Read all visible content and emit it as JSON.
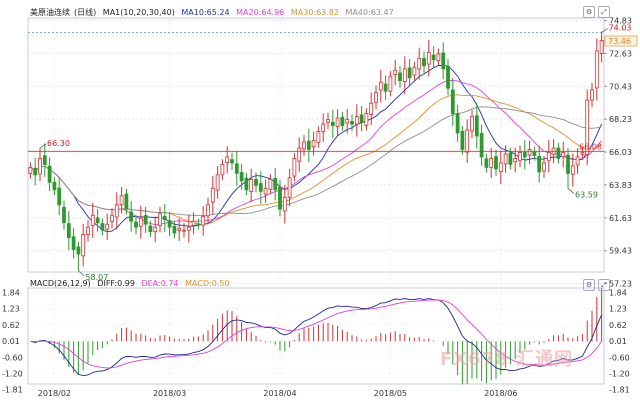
{
  "legend": {
    "title": "美原油连续",
    "period": "(日线)",
    "ma": "MA1(10,20,30,40)",
    "ma10": "MA10:65.24",
    "ma20": "MA20:64.96",
    "ma30": "MA30:63.82",
    "ma40": "MA40:63.47"
  },
  "macd_legend": {
    "title": "MACD(26,12,9)",
    "diff": "DIFF:0.99",
    "dea": "DEA:0.74",
    "macd": "MACD:0.50"
  },
  "watermark": "FX678 汇通网",
  "colors": {
    "up": "#d23030",
    "down": "#2e9a2e",
    "ma10": "#2030b0",
    "ma20": "#e040e0",
    "ma30": "#e09030",
    "ma40": "#909090",
    "hline": "#e03030",
    "price_tag": "#e08020"
  },
  "chart_data": {
    "type": "candlestick",
    "price_axis": {
      "ylim": [
        58.0,
        75.0
      ],
      "ticks": [
        "74.83",
        "72.63",
        "70.43",
        "68.23",
        "66.03",
        "63.83",
        "61.63",
        "59.43",
        "57.23"
      ]
    },
    "macd_axis": {
      "ylim": [
        -1.6,
        2.0
      ],
      "ticks": [
        "1.84",
        "1.23",
        "0.62",
        "0.01",
        "-0.60",
        "-1.20",
        "-1.81"
      ]
    },
    "date_labels": [
      {
        "label": "2018/02",
        "index": 5
      },
      {
        "label": "2018/03",
        "index": 29
      },
      {
        "label": "2018/04",
        "index": 52
      },
      {
        "label": "2018/05",
        "index": 75
      },
      {
        "label": "2018/06",
        "index": 98
      }
    ],
    "horizontal_line": {
      "value": 66.08,
      "label": "66.08"
    },
    "last_price": {
      "value": 73.46,
      "label": "73.46"
    },
    "annotations": [
      {
        "label": "66.30",
        "index": 2,
        "value": 66.3
      },
      {
        "label": "58.07",
        "index": 10,
        "value": 58.07
      },
      {
        "label": "74.03",
        "index": 119,
        "value": 74.03
      },
      {
        "label": "63.59",
        "index": 112,
        "value": 63.59
      }
    ],
    "closes": [
      65.0,
      64.5,
      65.6,
      65.2,
      64.0,
      63.5,
      62.5,
      61.3,
      60.3,
      59.5,
      59.2,
      60.5,
      61.0,
      61.8,
      61.3,
      60.8,
      61.2,
      61.8,
      62.5,
      63.1,
      62.2,
      61.4,
      61.0,
      61.6,
      61.2,
      60.7,
      61.0,
      61.9,
      61.5,
      61.0,
      60.6,
      60.9,
      60.8,
      61.0,
      61.4,
      61.2,
      61.7,
      62.5,
      63.6,
      64.5,
      65.2,
      65.7,
      65.3,
      64.6,
      64.1,
      63.5,
      64.2,
      63.8,
      63.4,
      63.6,
      64.2,
      63.5,
      62.2,
      63.0,
      64.3,
      65.6,
      66.3,
      66.7,
      66.2,
      66.8,
      67.4,
      67.9,
      68.2,
      67.8,
      68.3,
      67.8,
      68.2,
      67.9,
      68.4,
      68.0,
      68.6,
      69.3,
      70.0,
      70.7,
      70.1,
      71.1,
      71.5,
      70.8,
      71.6,
      71.0,
      71.7,
      72.3,
      71.8,
      72.7,
      72.2,
      72.6,
      71.6,
      70.3,
      68.6,
      67.3,
      66.2,
      67.5,
      68.4,
      67.1,
      65.7,
      65.0,
      65.6,
      64.9,
      65.3,
      65.9,
      65.2,
      65.6,
      66.0,
      65.7,
      66.2,
      65.8,
      64.7,
      65.3,
      66.0,
      66.3,
      65.6,
      66.0,
      64.6,
      65.1,
      65.7,
      66.0,
      69.5,
      70.2,
      72.8,
      73.5
    ]
  }
}
